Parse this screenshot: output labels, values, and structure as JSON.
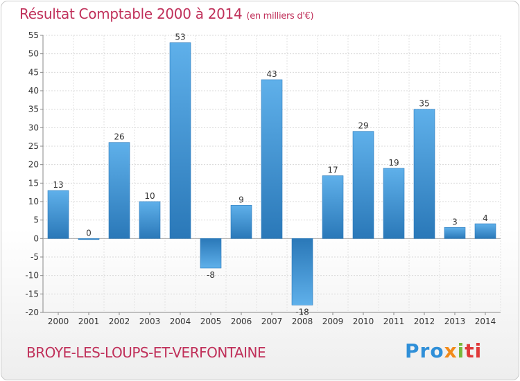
{
  "chart_data": {
    "type": "bar",
    "title": "Résultat Comptable 2000 à 2014",
    "unit_note": "(en milliers d'€)",
    "categories": [
      "2000",
      "2001",
      "2002",
      "2003",
      "2004",
      "2005",
      "2006",
      "2007",
      "2008",
      "2009",
      "2010",
      "2011",
      "2012",
      "2013",
      "2014"
    ],
    "values": [
      13,
      0,
      26,
      10,
      53,
      -8,
      9,
      43,
      -18,
      17,
      29,
      19,
      35,
      3,
      4
    ],
    "data_labels": [
      "13",
      "0",
      "26",
      "10",
      "53",
      "-8",
      "9",
      "43",
      "-18",
      "17",
      "29",
      "19",
      "35",
      "3",
      "4"
    ],
    "yticks": [
      "55",
      "50",
      "45",
      "40",
      "35",
      "30",
      "25",
      "20",
      "15",
      "10",
      "5",
      "0",
      "-5",
      "-10",
      "-15",
      "-20"
    ],
    "ylim": [
      -20,
      55
    ],
    "grid": true,
    "bar_color": "#3a8fd4"
  },
  "footer": {
    "commune": "BROYE-LES-LOUPS-ET-VERFONTAINE",
    "logo": {
      "p1": "Pro",
      "p2": "x",
      "p3": "i",
      "p4": "ti"
    }
  }
}
